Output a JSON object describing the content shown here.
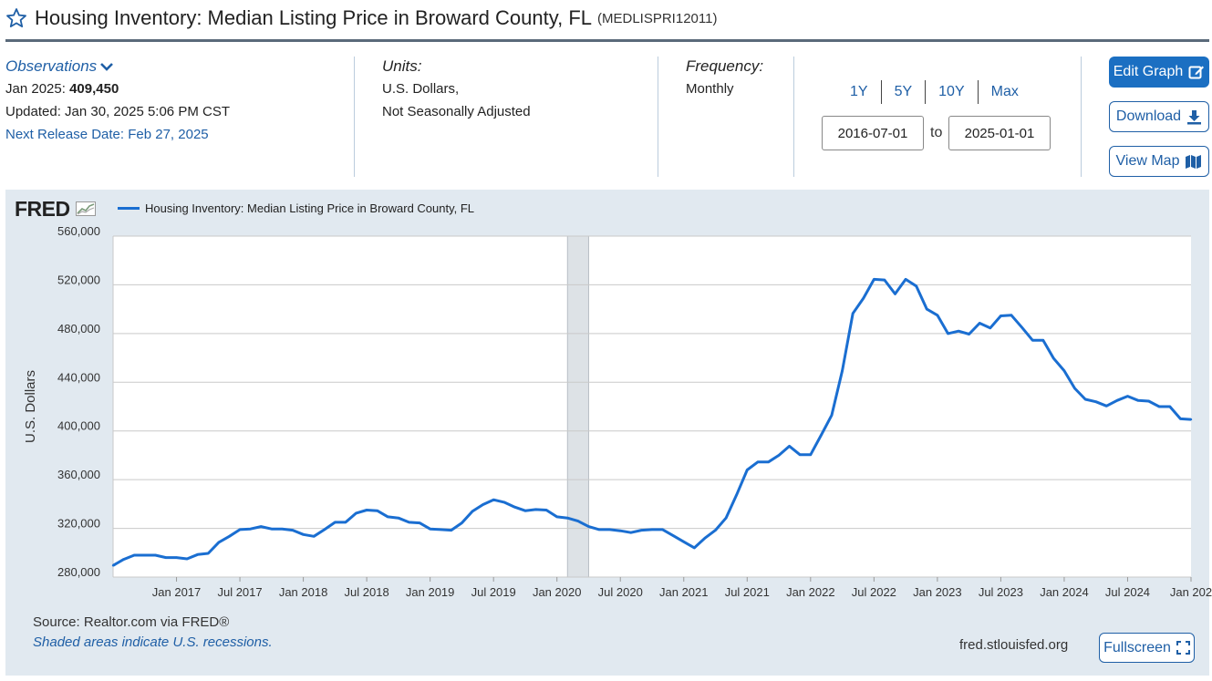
{
  "header": {
    "title": "Housing Inventory: Median Listing Price in Broward County, FL",
    "series_code": "(MEDLISPRI12011)"
  },
  "observations": {
    "link_label": "Observations",
    "latest_label": "Jan 2025:",
    "latest_value": "409,450",
    "updated": "Updated: Jan 30, 2025 5:06 PM CST",
    "next_release": "Next Release Date: Feb 27, 2025"
  },
  "units": {
    "heading": "Units:",
    "line1": "U.S. Dollars,",
    "line2": "Not Seasonally Adjusted"
  },
  "frequency": {
    "heading": "Frequency:",
    "value": "Monthly"
  },
  "range_buttons": [
    "1Y",
    "5Y",
    "10Y",
    "Max"
  ],
  "date_range": {
    "start": "2016-07-01",
    "to_label": "to",
    "end": "2025-01-01"
  },
  "actions": {
    "edit_graph": "Edit Graph",
    "download": "Download",
    "view_map": "View Map"
  },
  "footer": {
    "source": "Source: Realtor.com via FRED®",
    "shaded_note": "Shaded areas indicate U.S. recessions.",
    "site": "fred.stlouisfed.org",
    "fullscreen": "Fullscreen"
  },
  "logo_text": "FRED",
  "colors": {
    "series": "#1a6ed1",
    "brand_blue": "#1b6fc2",
    "link_blue": "#1f5fa6",
    "panel_bg": "#e1e9f0",
    "recession": "#dde2e6"
  },
  "chart_data": {
    "type": "line",
    "title": "",
    "xlabel": "",
    "ylabel": "U.S. Dollars",
    "ylim": [
      280000,
      560000
    ],
    "yticks": [
      "280,000",
      "320,000",
      "360,000",
      "400,000",
      "440,000",
      "480,000",
      "520,000",
      "560,000"
    ],
    "xlim": [
      "2016-07",
      "2025-01"
    ],
    "xticks": [
      "Jan 2017",
      "Jul 2017",
      "Jan 2018",
      "Jul 2018",
      "Jan 2019",
      "Jul 2019",
      "Jan 2020",
      "Jul 2020",
      "Jan 2021",
      "Jul 2021",
      "Jan 2022",
      "Jul 2022",
      "Jan 2023",
      "Jul 2023",
      "Jan 2024",
      "Jul 2024",
      "Jan 202"
    ],
    "grid": true,
    "legend": "top-left",
    "recessions": [
      [
        "2020-02",
        "2020-04"
      ]
    ],
    "series": [
      {
        "name": "Housing Inventory: Median Listing Price in Broward County, FL",
        "x": [
          "2016-07",
          "2016-08",
          "2016-09",
          "2016-10",
          "2016-11",
          "2016-12",
          "2017-01",
          "2017-02",
          "2017-03",
          "2017-04",
          "2017-05",
          "2017-06",
          "2017-07",
          "2017-08",
          "2017-09",
          "2017-10",
          "2017-11",
          "2017-12",
          "2018-01",
          "2018-02",
          "2018-03",
          "2018-04",
          "2018-05",
          "2018-06",
          "2018-07",
          "2018-08",
          "2018-09",
          "2018-10",
          "2018-11",
          "2018-12",
          "2019-01",
          "2019-02",
          "2019-03",
          "2019-04",
          "2019-05",
          "2019-06",
          "2019-07",
          "2019-08",
          "2019-09",
          "2019-10",
          "2019-11",
          "2019-12",
          "2020-01",
          "2020-02",
          "2020-03",
          "2020-04",
          "2020-05",
          "2020-06",
          "2020-07",
          "2020-08",
          "2020-09",
          "2020-10",
          "2020-11",
          "2020-12",
          "2021-01",
          "2021-02",
          "2021-03",
          "2021-04",
          "2021-05",
          "2021-06",
          "2021-07",
          "2021-08",
          "2021-09",
          "2021-10",
          "2021-11",
          "2021-12",
          "2022-01",
          "2022-02",
          "2022-03",
          "2022-04",
          "2022-05",
          "2022-06",
          "2022-07",
          "2022-08",
          "2022-09",
          "2022-10",
          "2022-11",
          "2022-12",
          "2023-01",
          "2023-02",
          "2023-03",
          "2023-04",
          "2023-05",
          "2023-06",
          "2023-07",
          "2023-08",
          "2023-09",
          "2023-10",
          "2023-11",
          "2023-12",
          "2024-01",
          "2024-02",
          "2024-03",
          "2024-04",
          "2024-05",
          "2024-06",
          "2024-07",
          "2024-08",
          "2024-09",
          "2024-10",
          "2024-11",
          "2024-12",
          "2025-01"
        ],
        "values": [
          289500,
          294500,
          298000,
          298000,
          298000,
          296000,
          296000,
          295000,
          298500,
          299500,
          308500,
          313500,
          319000,
          319500,
          321500,
          319500,
          319500,
          318500,
          315000,
          313500,
          319000,
          325000,
          325000,
          332500,
          335000,
          334500,
          329500,
          328500,
          325000,
          324500,
          319500,
          319000,
          318500,
          324500,
          334000,
          339500,
          343500,
          341500,
          337500,
          334500,
          335500,
          335000,
          329500,
          328500,
          326000,
          321500,
          319000,
          319000,
          318000,
          316500,
          318500,
          319000,
          319000,
          314000,
          309000,
          304000,
          312000,
          318500,
          328500,
          347500,
          368000,
          374500,
          374500,
          380000,
          387500,
          380500,
          380500,
          396500,
          413000,
          449500,
          496500,
          509000,
          524500,
          524000,
          512500,
          524500,
          519000,
          500000,
          495000,
          480000,
          482000,
          479500,
          488500,
          484500,
          494500,
          495000,
          485000,
          474500,
          474500,
          459500,
          449500,
          435000,
          426000,
          424000,
          420500,
          425000,
          428500,
          425000,
          424500,
          420000,
          420000,
          410000,
          409450
        ]
      }
    ]
  }
}
